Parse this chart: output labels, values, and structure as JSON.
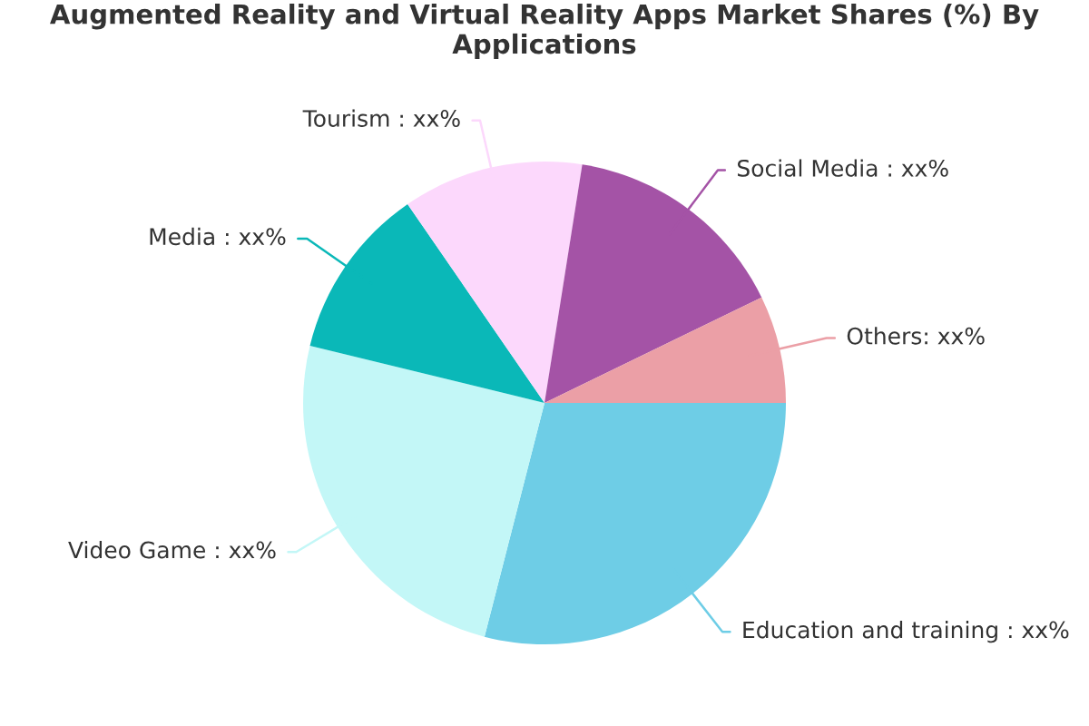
{
  "chart_data": {
    "type": "pie",
    "title": "Augmented Reality and Virtual Reality Apps Market Shares (%) By Applications",
    "categories": [
      "Education and training : xx%",
      "Video Game : xx%",
      "Media : xx%",
      "Tourism : xx%",
      "Social Media : xx%",
      "Others: xx%"
    ],
    "values": [
      29,
      24.8,
      11.6,
      12.1,
      15.3,
      7.2
    ],
    "colors": [
      "#6ecde6",
      "#c3f7f7",
      "#0ab8b8",
      "#fcd8fc",
      "#a453a6",
      "#eb9fa6"
    ]
  }
}
